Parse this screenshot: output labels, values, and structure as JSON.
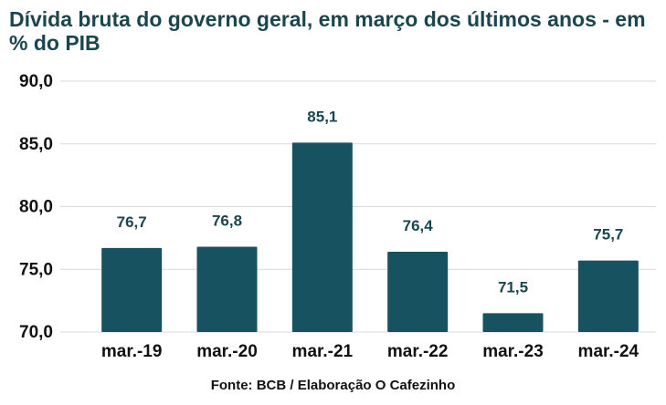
{
  "chart_data": {
    "type": "bar",
    "title": "Dívida bruta do governo geral, em março dos últimos anos - em % do PIB",
    "categories": [
      "mar.-19",
      "mar.-20",
      "mar.-21",
      "mar.-22",
      "mar.-23",
      "mar.-24"
    ],
    "values": [
      76.7,
      76.8,
      85.1,
      76.4,
      71.5,
      75.7
    ],
    "value_labels": [
      "76,7",
      "76,8",
      "85,1",
      "76,4",
      "71,5",
      "75,7"
    ],
    "y_ticks": [
      70,
      75,
      80,
      85,
      90
    ],
    "y_tick_labels": [
      "70,0",
      "75,0",
      "80,0",
      "85,0",
      "90,0"
    ],
    "ylim": [
      70,
      90
    ],
    "grid": true,
    "legend": "none",
    "xlabel": "",
    "ylabel": "",
    "colors": {
      "bar": "#175260",
      "value_label": "#1b4650",
      "grid": "#d9d9d9",
      "title": "#1b4650"
    }
  },
  "source": "Fonte: BCB / Elaboração O Cafezinho"
}
